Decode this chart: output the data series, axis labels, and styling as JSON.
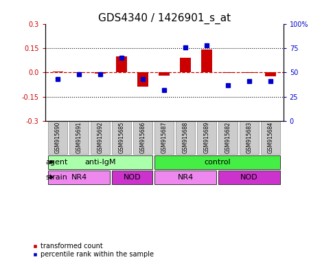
{
  "title": "GDS4340 / 1426901_s_at",
  "samples": [
    "GSM915690",
    "GSM915691",
    "GSM915692",
    "GSM915685",
    "GSM915686",
    "GSM915687",
    "GSM915688",
    "GSM915689",
    "GSM915682",
    "GSM915683",
    "GSM915684"
  ],
  "red_values": [
    0.005,
    -0.005,
    -0.008,
    0.1,
    -0.09,
    -0.02,
    0.09,
    0.143,
    -0.005,
    -0.005,
    -0.025
  ],
  "blue_values": [
    43,
    48,
    48,
    65,
    43,
    32,
    76,
    78,
    37,
    41,
    41
  ],
  "ylim_left": [
    -0.3,
    0.3
  ],
  "ylim_right": [
    0,
    100
  ],
  "yticks_left": [
    -0.3,
    -0.15,
    0.0,
    0.15,
    0.3
  ],
  "yticks_right": [
    0,
    25,
    50,
    75,
    100
  ],
  "dotted_lines": [
    -0.15,
    0.15
  ],
  "agent_groups": [
    {
      "label": "anti-IgM",
      "start": 0,
      "end": 5,
      "color": "#AAFFAA"
    },
    {
      "label": "control",
      "start": 5,
      "end": 11,
      "color": "#44EE44"
    }
  ],
  "strain_groups": [
    {
      "label": "NR4",
      "start": 0,
      "end": 3,
      "color": "#EE88EE"
    },
    {
      "label": "NOD",
      "start": 3,
      "end": 5,
      "color": "#CC33CC"
    },
    {
      "label": "NR4",
      "start": 5,
      "end": 8,
      "color": "#EE88EE"
    },
    {
      "label": "NOD",
      "start": 8,
      "end": 11,
      "color": "#CC33CC"
    }
  ],
  "bar_width": 0.5,
  "red_color": "#CC0000",
  "blue_color": "#0000CC",
  "dashed_color": "#CC0000",
  "sample_box_color": "#CCCCCC",
  "legend_red": "transformed count",
  "legend_blue": "percentile rank within the sample",
  "label_agent": "agent",
  "label_strain": "strain",
  "title_fontsize": 11,
  "tick_fontsize": 7,
  "sample_fontsize": 5.5,
  "label_fontsize": 8,
  "group_fontsize": 8,
  "legend_fontsize": 7
}
